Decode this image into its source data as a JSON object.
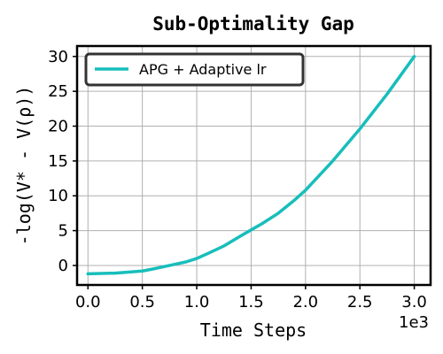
{
  "chart_data": {
    "type": "line",
    "title": "Sub-Optimality Gap",
    "xlabel": "Time Steps",
    "ylabel": "-log(V* - V(ρ))",
    "x_offset_label": "1e3",
    "xlim": [
      -0.1,
      3.15
    ],
    "ylim": [
      -2.8,
      31.5
    ],
    "x_ticks": [
      0.0,
      0.5,
      1.0,
      1.5,
      2.0,
      2.5,
      3.0
    ],
    "x_tick_labels": [
      "0.0",
      "0.5",
      "1.0",
      "1.5",
      "2.0",
      "2.5",
      "3.0"
    ],
    "y_ticks": [
      0,
      5,
      10,
      15,
      20,
      25,
      30
    ],
    "y_tick_labels": [
      "0",
      "5",
      "10",
      "15",
      "20",
      "25",
      "30"
    ],
    "grid": true,
    "legend_position": "top-left",
    "series": [
      {
        "name": "APG + Adaptive lr",
        "color": "#17bebb",
        "x": [
          0.0,
          0.25,
          0.5,
          0.6,
          0.75,
          0.9,
          1.0,
          1.1,
          1.25,
          1.4,
          1.5,
          1.6,
          1.75,
          1.9,
          2.0,
          2.25,
          2.5,
          2.75,
          3.0
        ],
        "y": [
          -1.2,
          -1.1,
          -0.8,
          -0.5,
          0.0,
          0.5,
          1.0,
          1.7,
          2.8,
          4.2,
          5.1,
          6.0,
          7.5,
          9.4,
          10.8,
          15.0,
          19.6,
          24.6,
          30.0
        ]
      }
    ]
  }
}
